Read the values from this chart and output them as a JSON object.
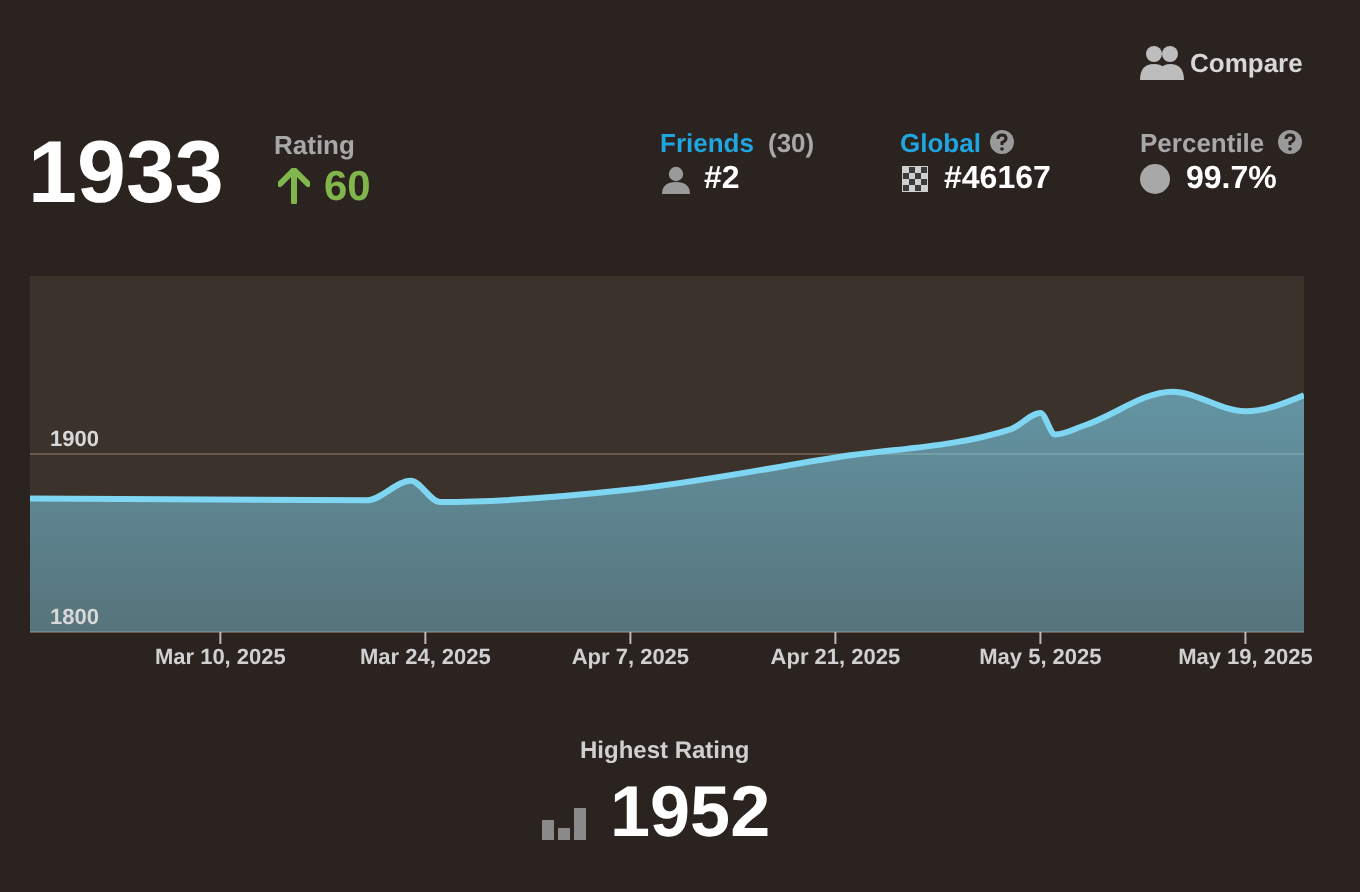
{
  "chart_data": {
    "type": "area",
    "title": "1933",
    "subtitle": "Rating",
    "annotations": [
      "60",
      "Friends",
      "(30)",
      "#2",
      "Global",
      "#46167",
      "Percentile",
      "99.7%",
      "Compare",
      "Highest Rating",
      "1952"
    ],
    "x": [
      "2025-02-25",
      "2025-03-20",
      "2025-03-23",
      "2025-03-25",
      "2025-04-07",
      "2025-04-21",
      "2025-05-03",
      "2025-05-05",
      "2025-05-06",
      "2025-05-08",
      "2025-05-14",
      "2025-05-19",
      "2025-05-23"
    ],
    "series": [
      {
        "color": "#7fd6f2",
        "values": [
          1875,
          1874,
          1885,
          1873,
          1880,
          1898,
          1914,
          1923,
          1911,
          1916,
          1935,
          1924,
          1933
        ]
      }
    ],
    "xlim": [
      "2025-02-25",
      "2025-05-23"
    ],
    "xticks": [
      {
        "value": "2025-03-10",
        "label": "Mar 10, 2025"
      },
      {
        "value": "2025-03-24",
        "label": "Mar 24, 2025"
      },
      {
        "value": "2025-04-07",
        "label": "Apr 7, 2025"
      },
      {
        "value": "2025-04-21",
        "label": "Apr 21, 2025"
      },
      {
        "value": "2025-05-05",
        "label": "May 5, 2025"
      },
      {
        "value": "2025-05-19",
        "label": "May 19, 2025"
      }
    ],
    "ylim": [
      1800,
      2000
    ],
    "yticks": [
      1800,
      1900
    ],
    "grid": "y",
    "legend": false
  }
}
